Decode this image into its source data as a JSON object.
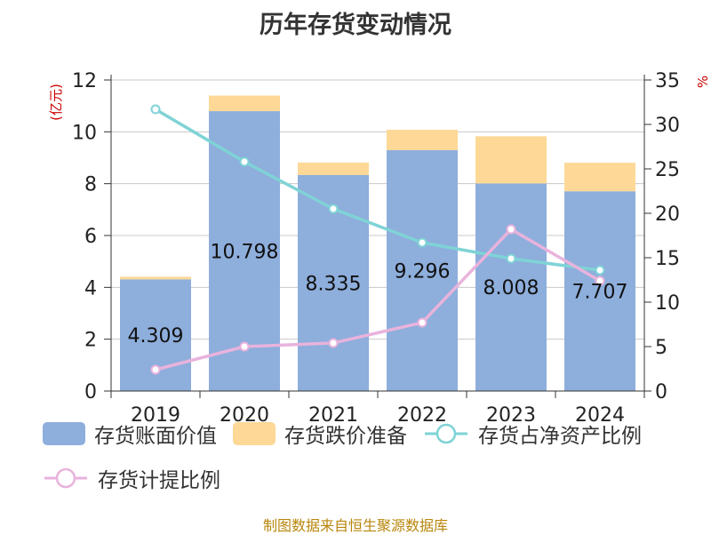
{
  "title": "历年存货变动情况",
  "source_note": "制图数据来自恒生聚源数据库",
  "colors": {
    "book_value": "#8eaedc",
    "provision": "#fdd896",
    "ratio_net_assets": "#7fd3d6",
    "provision_ratio": "#e8b3dc",
    "axis_label": "#cc0000"
  },
  "legend": [
    {
      "label": "存货账面价值",
      "kind": "rect",
      "color": "#8eaedc"
    },
    {
      "label": "存货跌价准备",
      "kind": "rect",
      "color": "#fdd896"
    },
    {
      "label": "存货占净资产比例",
      "kind": "line",
      "color": "#7fd3d6"
    },
    {
      "label": "存货计提比例",
      "kind": "line",
      "color": "#e8b3dc"
    }
  ],
  "chart_data": {
    "type": "bar",
    "title": "历年存货变动情况",
    "categories": [
      "2019",
      "2020",
      "2021",
      "2022",
      "2023",
      "2024"
    ],
    "ylabel_left": "(亿元)",
    "ylabel_right": "%",
    "ylim_left": [
      0,
      12
    ],
    "yticks_left": [
      "0",
      "2",
      "4",
      "6",
      "8",
      "10",
      "12"
    ],
    "ylim_right": [
      0,
      35
    ],
    "yticks_right": [
      "0",
      "5",
      "10",
      "15",
      "20",
      "25",
      "30",
      "35"
    ],
    "grid": true,
    "legend_position": "bottom",
    "bar_series": [
      {
        "name": "存货账面价值",
        "values": [
          4.309,
          10.798,
          8.335,
          9.296,
          8.008,
          7.707
        ],
        "labels": [
          "4.309",
          "10.798",
          "8.335",
          "9.296",
          "8.008",
          "7.707"
        ]
      },
      {
        "name": "存货跌价准备",
        "values": [
          0.1,
          0.6,
          0.48,
          0.78,
          1.82,
          1.1
        ]
      }
    ],
    "line_series": [
      {
        "name": "存货占净资产比例",
        "axis": "right",
        "values": [
          31.7,
          25.8,
          20.5,
          16.7,
          14.9,
          13.6
        ]
      },
      {
        "name": "存货计提比例",
        "axis": "right",
        "values": [
          2.4,
          5.0,
          5.4,
          7.7,
          18.2,
          12.4
        ]
      }
    ]
  }
}
